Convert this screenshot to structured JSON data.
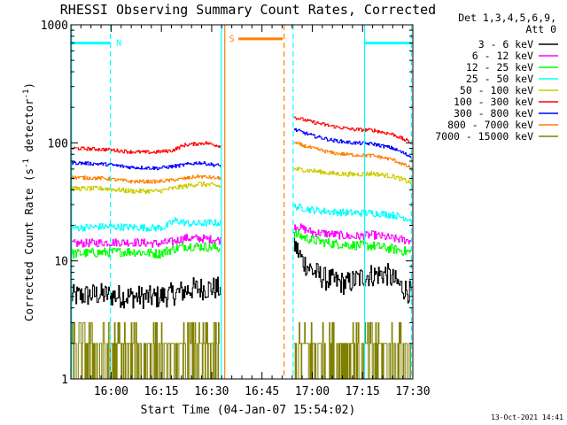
{
  "chart_data": {
    "type": "line",
    "title": "RHESSI Observing Summary Count Rates, Corrected",
    "xlabel": "Start Time (04-Jan-07 15:54:02)",
    "ylabel_main": "Corrected Count Rate (s",
    "ylabel_sup1": "-1",
    "ylabel_mid": " detector",
    "ylabel_sup2": "-1",
    "ylabel_end": ")",
    "footer": "13-Oct-2021 14:41",
    "y_scale": "log",
    "ylim": [
      1,
      1000
    ],
    "xlim_minutes": [
      -6,
      96
    ],
    "x_ticks": [
      {
        "t": 6,
        "label": "16:00"
      },
      {
        "t": 21,
        "label": "16:15"
      },
      {
        "t": 36,
        "label": "16:30"
      },
      {
        "t": 51,
        "label": "16:45"
      },
      {
        "t": 66,
        "label": "17:00"
      },
      {
        "t": 81,
        "label": "17:15"
      },
      {
        "t": 96,
        "label": "17:30"
      }
    ],
    "y_ticks": [
      {
        "v": 1,
        "label": "1"
      },
      {
        "v": 10,
        "label": "10"
      },
      {
        "v": 100,
        "label": "100"
      },
      {
        "v": 1000,
        "label": "1000"
      }
    ],
    "legend_title_1": "Det 1,3,4,5,6,9,",
    "legend_title_2": "Att 0",
    "data_gap": [
      39,
      60
    ],
    "series": [
      {
        "name": "3 - 6 keV",
        "color": "#000000",
        "seg1": [
          [
            -6,
            5
          ],
          [
            2,
            5.2
          ],
          [
            10,
            5
          ],
          [
            19,
            4.9
          ],
          [
            24,
            5.2
          ],
          [
            30,
            5.8
          ],
          [
            36,
            5.9
          ],
          [
            38.5,
            5.8
          ]
        ],
        "seg2": [
          [
            60.5,
            14
          ],
          [
            63,
            10
          ],
          [
            66,
            8.2
          ],
          [
            70,
            7
          ],
          [
            76,
            6.4
          ],
          [
            82,
            7.5
          ],
          [
            88,
            7.8
          ],
          [
            92,
            6.2
          ],
          [
            95.5,
            5.3
          ]
        ],
        "noise": 0.1
      },
      {
        "name": "6 - 12 keV",
        "color": "#ff00ff",
        "seg1": [
          [
            -6,
            14
          ],
          [
            4,
            14.3
          ],
          [
            12,
            14.4
          ],
          [
            20,
            14
          ],
          [
            24,
            14.5
          ],
          [
            28,
            15.6
          ],
          [
            34,
            15.4
          ],
          [
            38.5,
            15
          ]
        ],
        "seg2": [
          [
            60.5,
            20
          ],
          [
            66,
            17.5
          ],
          [
            72,
            16.8
          ],
          [
            78,
            16
          ],
          [
            84,
            16.6
          ],
          [
            90,
            15.5
          ],
          [
            95.5,
            14.8
          ]
        ],
        "noise": 0.035
      },
      {
        "name": "12 - 25 keV",
        "color": "#00ff00",
        "seg1": [
          [
            -6,
            11.5
          ],
          [
            4,
            11.8
          ],
          [
            12,
            12
          ],
          [
            20,
            11.5
          ],
          [
            24,
            12.5
          ],
          [
            28,
            13.4
          ],
          [
            34,
            13.2
          ],
          [
            38.5,
            12.8
          ]
        ],
        "seg2": [
          [
            60.5,
            17
          ],
          [
            66,
            15
          ],
          [
            72,
            14
          ],
          [
            78,
            13.6
          ],
          [
            84,
            13.4
          ],
          [
            90,
            12.6
          ],
          [
            95.5,
            11.8
          ]
        ],
        "noise": 0.04
      },
      {
        "name": "25 - 50 keV",
        "color": "#00ffff",
        "seg1": [
          [
            -6,
            19
          ],
          [
            4,
            19.5
          ],
          [
            12,
            19.3
          ],
          [
            19,
            19
          ],
          [
            22,
            19.3
          ],
          [
            25,
            22
          ],
          [
            30,
            20.5
          ],
          [
            35,
            21
          ],
          [
            38.5,
            21
          ]
        ],
        "seg2": [
          [
            60.5,
            29
          ],
          [
            66,
            27
          ],
          [
            72,
            26
          ],
          [
            78,
            25.5
          ],
          [
            84,
            25.5
          ],
          [
            90,
            24.5
          ],
          [
            95.5,
            22.5
          ]
        ],
        "noise": 0.03
      },
      {
        "name": "50 - 100 keV",
        "color": "#cccc00",
        "seg1": [
          [
            -6,
            41
          ],
          [
            4,
            41
          ],
          [
            12,
            39
          ],
          [
            20,
            39
          ],
          [
            26,
            42
          ],
          [
            32,
            45
          ],
          [
            38.5,
            43
          ]
        ],
        "seg2": [
          [
            60.5,
            60
          ],
          [
            66,
            58
          ],
          [
            72,
            55
          ],
          [
            78,
            54
          ],
          [
            84,
            55
          ],
          [
            90,
            52
          ],
          [
            95.5,
            46
          ]
        ],
        "noise": 0.02
      },
      {
        "name": "100 - 300 keV",
        "color": "#ff0000",
        "seg1": [
          [
            -6,
            90
          ],
          [
            4,
            88
          ],
          [
            12,
            84
          ],
          [
            18,
            83
          ],
          [
            24,
            86
          ],
          [
            28,
            96
          ],
          [
            34,
            100
          ],
          [
            38.5,
            94
          ]
        ],
        "seg2": [
          [
            60.5,
            165
          ],
          [
            66,
            150
          ],
          [
            72,
            138
          ],
          [
            78,
            130
          ],
          [
            84,
            128
          ],
          [
            90,
            118
          ],
          [
            95.5,
            100
          ]
        ],
        "noise": 0.015
      },
      {
        "name": "300 - 800 keV",
        "color": "#0000ff",
        "seg1": [
          [
            -6,
            68
          ],
          [
            4,
            66
          ],
          [
            12,
            62
          ],
          [
            20,
            61
          ],
          [
            26,
            64
          ],
          [
            32,
            68
          ],
          [
            38.5,
            64
          ]
        ],
        "seg2": [
          [
            60.5,
            130
          ],
          [
            66,
            115
          ],
          [
            72,
            105
          ],
          [
            78,
            100
          ],
          [
            84,
            98
          ],
          [
            90,
            90
          ],
          [
            95.5,
            76
          ]
        ],
        "noise": 0.015
      },
      {
        "name": "800 - 7000 keV",
        "color": "#ff8000",
        "seg1": [
          [
            -6,
            51
          ],
          [
            4,
            50
          ],
          [
            12,
            47
          ],
          [
            20,
            47
          ],
          [
            26,
            49
          ],
          [
            32,
            52
          ],
          [
            38.5,
            50
          ]
        ],
        "seg2": [
          [
            60.5,
            100
          ],
          [
            66,
            90
          ],
          [
            72,
            82
          ],
          [
            78,
            79
          ],
          [
            84,
            78
          ],
          [
            90,
            72
          ],
          [
            95.5,
            61
          ]
        ],
        "noise": 0.015
      }
    ],
    "count_series": {
      "name": "7000 - 15000 keV",
      "color": "#808000",
      "levels": [
        1,
        2,
        3
      ]
    },
    "flags": [
      {
        "label": "N",
        "color": "#00ffff",
        "y": 700,
        "x0": -6,
        "x1": 5,
        "dash": [
          5,
          -6
        ]
      },
      {
        "label": "",
        "color": "#00ffff",
        "y": 700,
        "x0": 82,
        "x1": 96,
        "dash": [
          96
        ]
      },
      {
        "label": "",
        "color": "#00ffff",
        "y": 700,
        "x0": 82,
        "x1": 82,
        "dash": [],
        "solid": [
          82
        ]
      },
      {
        "label": "S",
        "color": "#ff8000",
        "y": 760,
        "x0": 44,
        "x1": 57,
        "dash": []
      }
    ],
    "vlines": [
      {
        "t": -5.8,
        "color": "#00ffff",
        "style": "solid"
      },
      {
        "t": 5.8,
        "color": "#00ffff",
        "style": "dashed"
      },
      {
        "t": 38.9,
        "color": "#00ffff",
        "style": "solid"
      },
      {
        "t": 39.9,
        "color": "#ff8000",
        "style": "solid"
      },
      {
        "t": 57.6,
        "color": "#ff8000",
        "style": "dashed"
      },
      {
        "t": 60.3,
        "color": "#00ffff",
        "style": "dashed"
      },
      {
        "t": 81.6,
        "color": "#00ffff",
        "style": "solid"
      },
      {
        "t": 95.6,
        "color": "#00ffff",
        "style": "dashed"
      }
    ]
  }
}
